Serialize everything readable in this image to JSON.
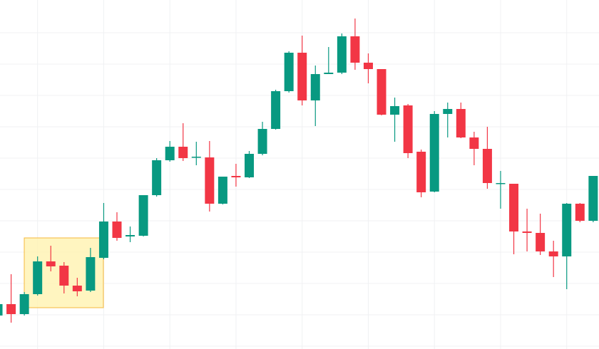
{
  "chart_data": {
    "type": "candlestick",
    "x": [
      0,
      1,
      2,
      3,
      4,
      5,
      6,
      7,
      8,
      9,
      10,
      11,
      12,
      13,
      14,
      15,
      16,
      17,
      18,
      19,
      20,
      21,
      22,
      23,
      24,
      25,
      26,
      27,
      28,
      29,
      30,
      31,
      32,
      33,
      34,
      35,
      36,
      37,
      38,
      39,
      40,
      41,
      42,
      43,
      44,
      45
    ],
    "open": [
      47,
      63,
      49,
      77,
      123,
      117,
      89,
      82,
      128,
      179,
      158,
      159,
      216,
      265,
      284,
      269,
      269,
      204,
      243,
      241,
      274,
      309,
      362,
      416,
      349,
      386,
      388,
      439,
      402,
      393,
      329,
      342,
      277,
      221,
      330,
      337,
      297,
      281,
      232,
      232,
      165,
      163,
      137,
      130,
      204,
      180
    ],
    "close": [
      63,
      49,
      77,
      123,
      116,
      89,
      81,
      129,
      179,
      156,
      160,
      216,
      265,
      284,
      268,
      270,
      204,
      242,
      241,
      274,
      309,
      362,
      416,
      349,
      386,
      388,
      439,
      402,
      393,
      329,
      341,
      275,
      220,
      330,
      337,
      297,
      281,
      233,
      233,
      165,
      163,
      137,
      130,
      204,
      180,
      243
    ],
    "high": [
      65,
      105,
      80,
      130,
      145,
      122,
      100,
      142,
      205,
      192,
      172,
      216,
      268,
      292,
      317,
      291,
      292,
      242,
      260,
      278,
      319,
      364,
      418,
      440,
      398,
      424,
      443,
      464,
      415,
      393,
      353,
      344,
      280,
      334,
      346,
      346,
      305,
      312,
      250,
      232,
      197,
      190,
      152,
      205,
      205,
      243
    ],
    "low": [
      45,
      37,
      47,
      75,
      109,
      78,
      74,
      80,
      126,
      152,
      150,
      158,
      214,
      263,
      264,
      258,
      193,
      203,
      228,
      240,
      272,
      308,
      360,
      342,
      313,
      386,
      386,
      392,
      373,
      328,
      291,
      268,
      213,
      220,
      297,
      296,
      258,
      225,
      197,
      133,
      137,
      132,
      101,
      84,
      178,
      178
    ],
    "up_color": "#089981",
    "down_color": "#f23645",
    "xlim": [
      0.16,
      45.44
    ],
    "xticks": [
      3,
      8,
      13,
      18,
      23,
      28,
      33,
      38,
      43
    ],
    "ylim": [
      0,
      490
    ],
    "yticks": [
      4,
      48,
      92,
      136,
      180,
      224,
      268,
      312,
      356,
      400,
      444
    ],
    "grid": true
  }
}
